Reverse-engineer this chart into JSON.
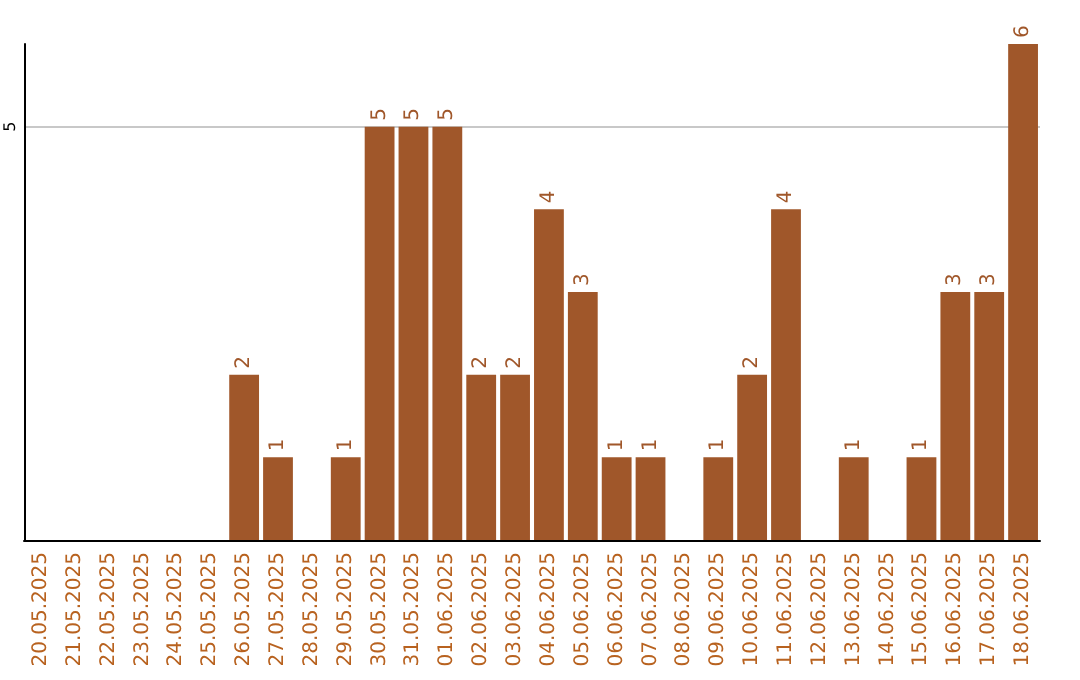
{
  "chart_data": {
    "type": "bar",
    "categories": [
      "20.05.2025",
      "21.05.2025",
      "22.05.2025",
      "23.05.2025",
      "24.05.2025",
      "25.05.2025",
      "26.05.2025",
      "27.05.2025",
      "28.05.2025",
      "29.05.2025",
      "30.05.2025",
      "31.05.2025",
      "01.06.2025",
      "02.06.2025",
      "03.06.2025",
      "04.06.2025",
      "05.06.2025",
      "06.06.2025",
      "07.06.2025",
      "08.06.2025",
      "09.06.2025",
      "10.06.2025",
      "11.06.2025",
      "12.06.2025",
      "13.06.2025",
      "14.06.2025",
      "15.06.2025",
      "16.06.2025",
      "17.06.2025",
      "18.06.2025"
    ],
    "values": [
      0,
      0,
      0,
      0,
      0,
      0,
      2,
      1,
      0,
      1,
      5,
      5,
      5,
      2,
      2,
      4,
      3,
      1,
      1,
      0,
      1,
      2,
      4,
      0,
      1,
      0,
      1,
      3,
      3,
      6
    ],
    "value_labels": [
      null,
      null,
      null,
      null,
      null,
      null,
      "2",
      "1",
      null,
      "1",
      "5",
      "5",
      "5",
      "2",
      "2",
      "4",
      "3",
      "1",
      "1",
      null,
      "1",
      "2",
      "4",
      null,
      "1",
      null,
      "1",
      "3",
      "3",
      "6"
    ],
    "color": "#a0572a",
    "ylim": [
      0,
      6
    ],
    "yticks": [
      5
    ],
    "grid": "y"
  }
}
